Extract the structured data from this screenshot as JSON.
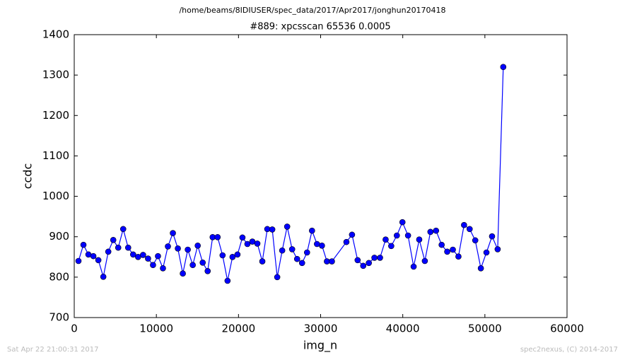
{
  "chart_data": {
    "type": "line",
    "title": "/home/beams/8IDIUSER/spec_data/2017/Apr2017/jonghun20170418",
    "subtitle": "#889: xpcsscan 65536 0.0005",
    "xlabel": "img_n",
    "ylabel": "ccdc",
    "footer_left": "Sat Apr 22 21:00:31 2017",
    "footer_right": "spec2nexus, (C) 2014-2017",
    "color": "#0000ff",
    "marker": true,
    "x": [
      516,
      1121,
      1726,
      2331,
      2936,
      3541,
      4146,
      4751,
      5356,
      5961,
      6566,
      7171,
      7776,
      8381,
      8986,
      9591,
      10196,
      10801,
      11406,
      12011,
      12616,
      13221,
      13826,
      14431,
      15036,
      15641,
      16246,
      16851,
      17456,
      18061,
      18666,
      19271,
      19876,
      20481,
      21086,
      21691,
      22296,
      22901,
      23506,
      24111,
      24716,
      25321,
      25926,
      26531,
      27136,
      27741,
      28346,
      28951,
      29556,
      30161,
      30766,
      31371,
      33140,
      33822,
      34504,
      35186,
      35868,
      36550,
      37232,
      37914,
      38596,
      39278,
      39960,
      40642,
      41324,
      42006,
      42688,
      43370,
      44052,
      44734,
      45416,
      46098,
      46780,
      47462,
      48144,
      48826,
      49508,
      50190,
      50872,
      51554,
      52236
    ],
    "values": [
      840,
      880,
      856,
      852,
      842,
      801,
      863,
      892,
      873,
      919,
      873,
      856,
      850,
      855,
      846,
      830,
      852,
      822,
      876,
      909,
      871,
      809,
      868,
      830,
      878,
      836,
      815,
      899,
      899,
      854,
      791,
      850,
      856,
      898,
      882,
      888,
      883,
      839,
      919,
      918,
      800,
      866,
      925,
      869,
      845,
      835,
      861,
      915,
      882,
      878,
      839,
      839,
      887,
      905,
      842,
      828,
      835,
      848,
      848,
      893,
      877,
      903,
      936,
      903,
      826,
      893,
      840,
      912,
      915,
      880,
      863,
      868,
      851,
      929,
      919,
      891,
      822,
      861,
      901,
      869,
      1320
    ],
    "xlim": [
      0,
      60000
    ],
    "xticks": [
      0,
      10000,
      20000,
      30000,
      40000,
      50000,
      60000
    ],
    "ylim": [
      700,
      1400
    ],
    "yticks": [
      700,
      800,
      900,
      1000,
      1100,
      1200,
      1300,
      1400
    ]
  }
}
